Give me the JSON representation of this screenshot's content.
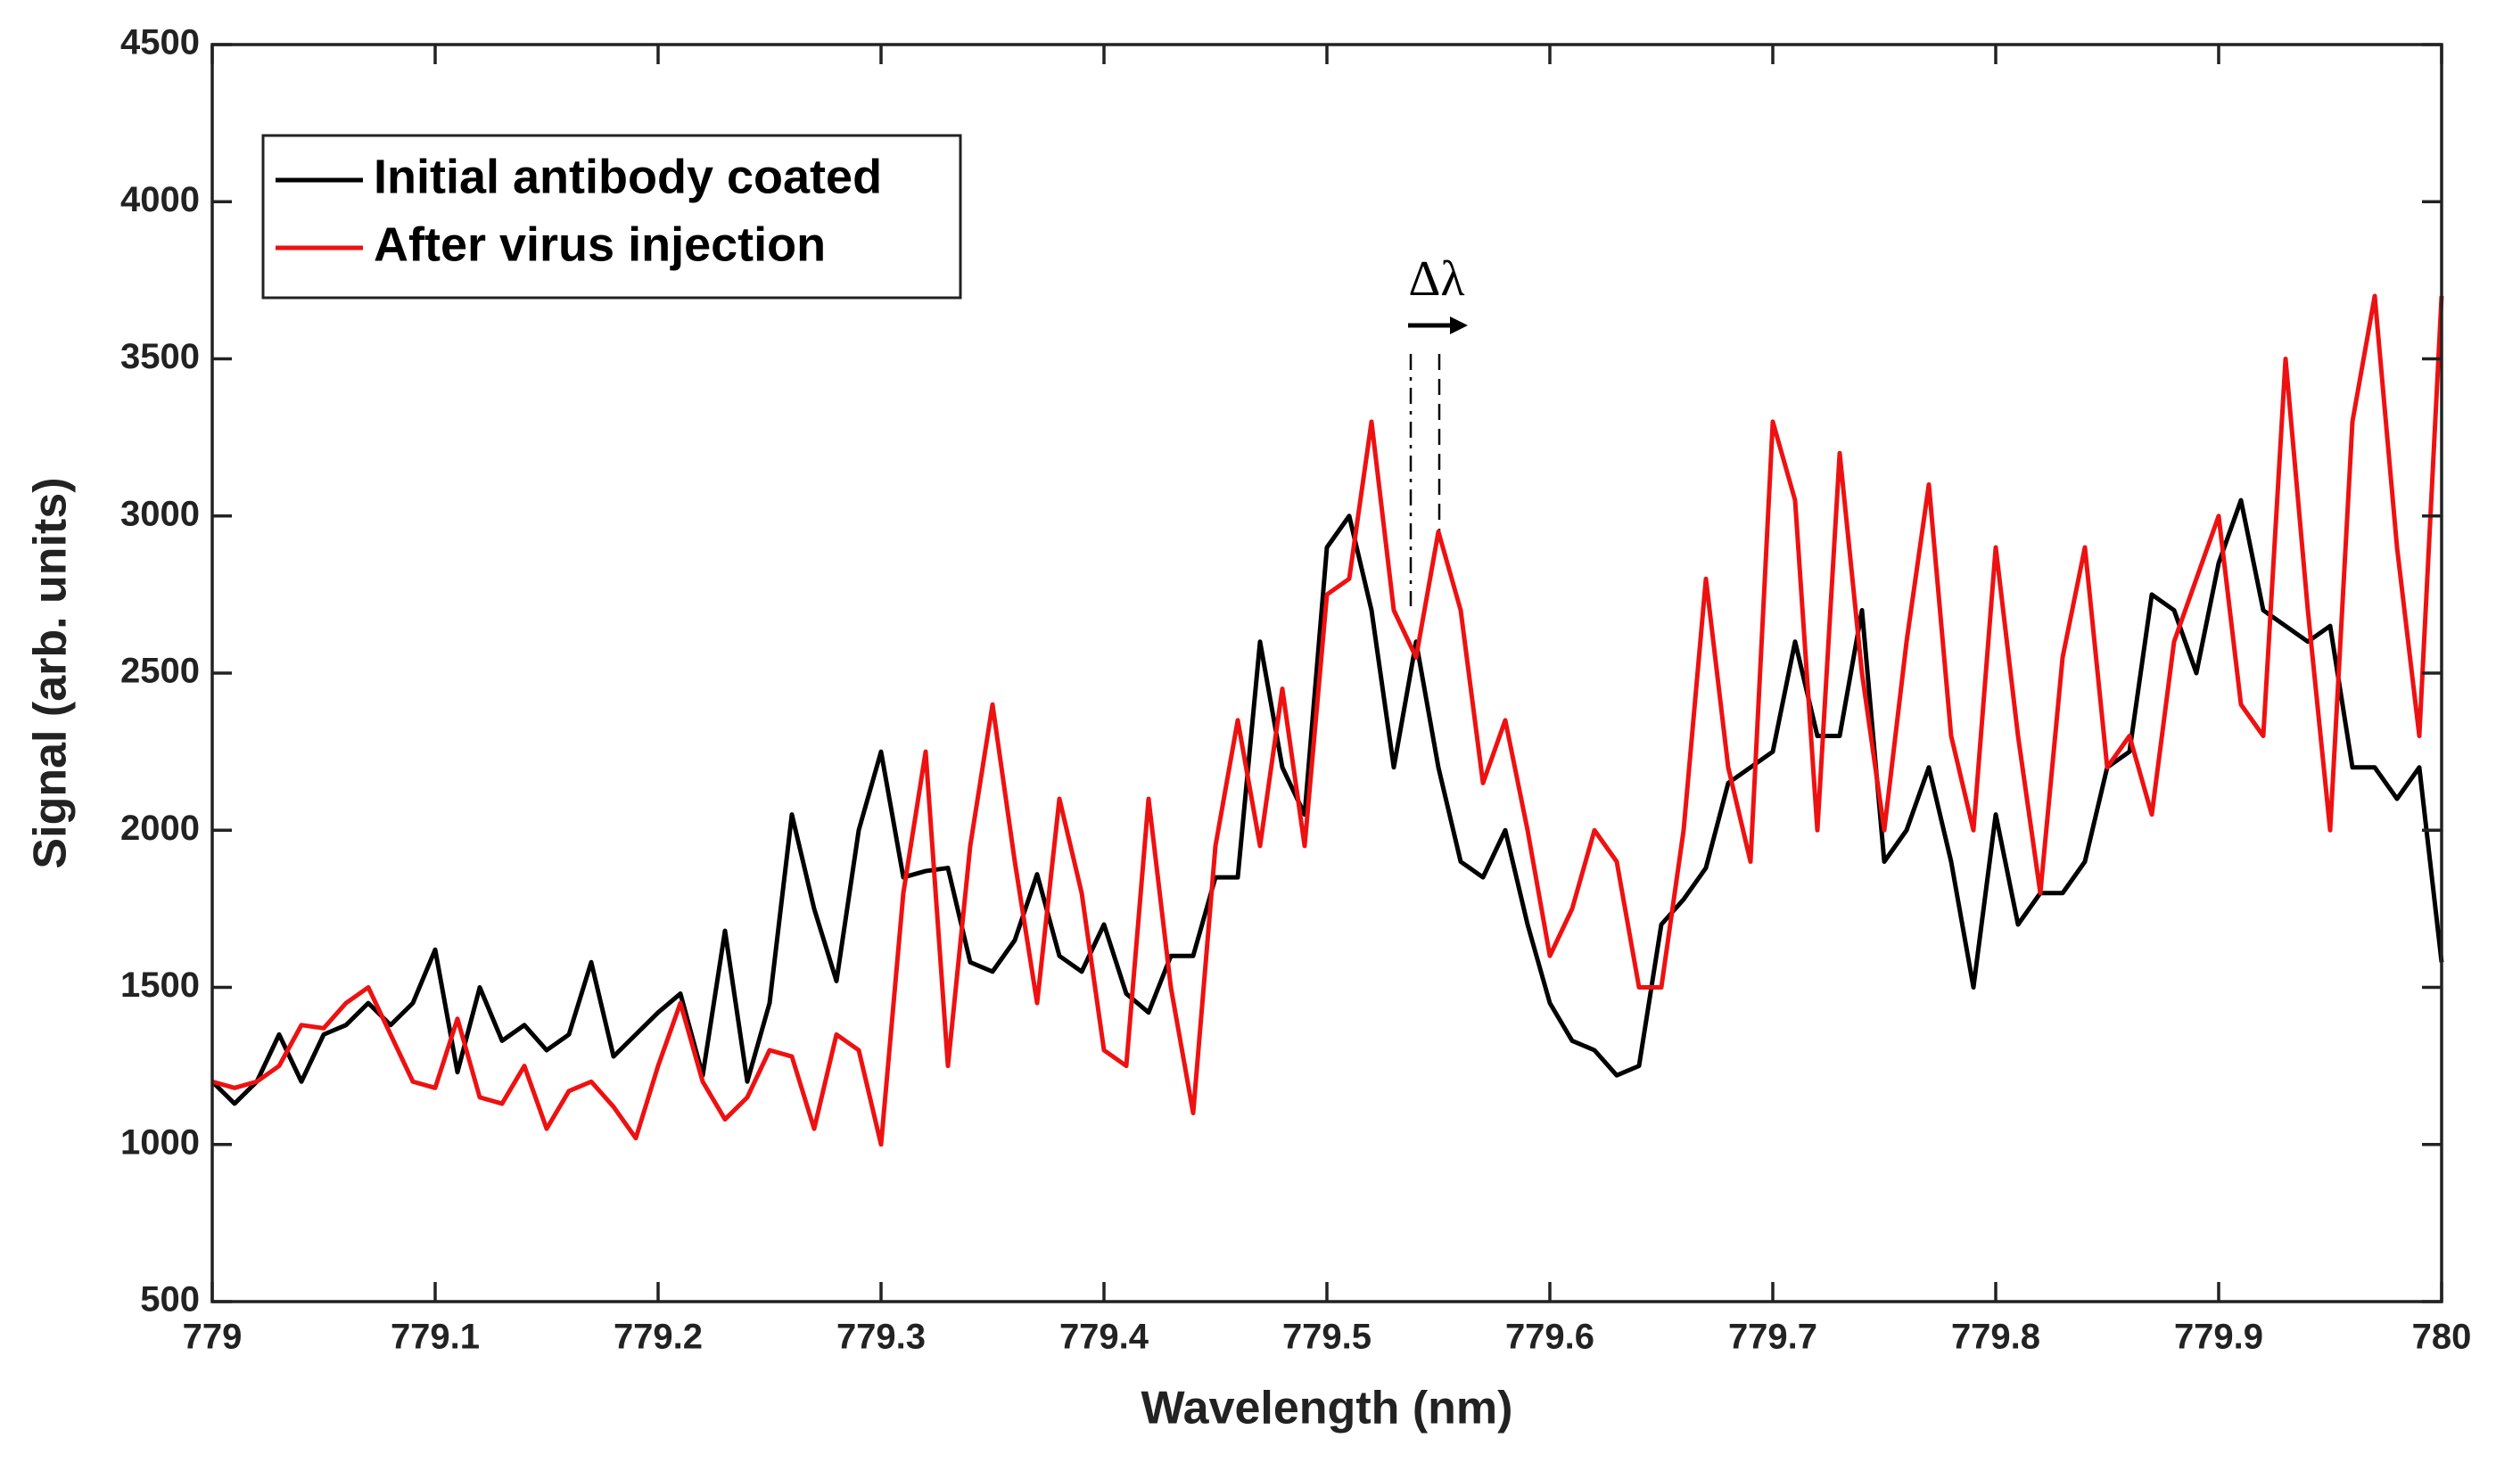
{
  "chart_data": {
    "type": "line",
    "xlabel": "Wavelength (nm)",
    "ylabel": "Signal (arb. units)",
    "annotation": "Δλ",
    "legend": "upper left",
    "x": [
      779,
      779.01,
      779.02,
      779.03,
      779.04,
      779.05,
      779.06,
      779.07,
      779.08,
      779.09,
      779.1,
      779.11,
      779.12,
      779.13,
      779.14,
      779.15,
      779.16,
      779.17,
      779.18,
      779.19,
      779.2,
      779.21,
      779.22,
      779.23,
      779.24,
      779.25,
      779.26,
      779.27,
      779.28,
      779.29,
      779.3,
      779.31,
      779.32,
      779.33,
      779.34,
      779.35,
      779.36,
      779.37,
      779.38,
      779.39,
      779.4,
      779.41,
      779.42,
      779.43,
      779.44,
      779.45,
      779.46,
      779.47,
      779.48,
      779.49,
      779.5,
      779.51,
      779.52,
      779.53,
      779.54,
      779.55,
      779.56,
      779.57,
      779.58,
      779.59,
      779.6,
      779.61,
      779.62,
      779.63,
      779.64,
      779.65,
      779.66,
      779.67,
      779.68,
      779.69,
      779.7,
      779.71,
      779.72,
      779.73,
      779.74,
      779.75,
      779.76,
      779.77,
      779.78,
      779.79,
      779.8,
      779.81,
      779.82,
      779.83,
      779.84,
      779.85,
      779.86,
      779.87,
      779.88,
      779.89,
      779.9,
      779.91,
      779.92,
      779.93,
      779.94,
      779.95,
      779.96,
      779.97,
      779.98,
      779.99,
      780
    ],
    "series": [
      {
        "name": "Initial antibody coated",
        "color": "#000000",
        "values": [
          1200,
          1130,
          1200,
          1350,
          1200,
          1350,
          1380,
          1450,
          1380,
          1450,
          1620,
          1230,
          1500,
          1330,
          1380,
          1300,
          1350,
          1580,
          1280,
          1350,
          1420,
          1480,
          1220,
          1680,
          1200,
          1450,
          2050,
          1750,
          1520,
          2000,
          2250,
          1850,
          1870,
          1880,
          1580,
          1550,
          1650,
          1860,
          1600,
          1550,
          1700,
          1480,
          1420,
          1600,
          1600,
          1850,
          1850,
          2600,
          2200,
          2050,
          2900,
          3000,
          2700,
          2200,
          2600,
          2200,
          1900,
          1850,
          2000,
          1700,
          1450,
          1330,
          1300,
          1220,
          1250,
          1700,
          1780,
          1880,
          2150,
          2200,
          2250,
          2600,
          2300,
          2300,
          2700,
          1900,
          2000,
          2200,
          1900,
          1500,
          2050,
          1700,
          1800,
          1800,
          1900,
          2200,
          2250,
          2750,
          2700,
          2500,
          2850,
          3050,
          2700,
          2650,
          2600,
          2650,
          2200,
          2200,
          2100,
          2200,
          1580
        ]
      },
      {
        "name": "After virus injection",
        "color": "#ee1111",
        "values": [
          1200,
          1180,
          1200,
          1250,
          1380,
          1370,
          1450,
          1500,
          1350,
          1200,
          1180,
          1400,
          1150,
          1130,
          1250,
          1050,
          1170,
          1200,
          1120,
          1020,
          1250,
          1450,
          1200,
          1080,
          1150,
          1300,
          1280,
          1050,
          1350,
          1300,
          1000,
          1800,
          2250,
          1250,
          1950,
          2400,
          1900,
          1450,
          2100,
          1800,
          1300,
          1250,
          2100,
          1500,
          1100,
          1950,
          2350,
          1950,
          2450,
          1950,
          2750,
          2800,
          3300,
          2700,
          2550,
          2950,
          2700,
          2150,
          2350,
          2000,
          1600,
          1750,
          2000,
          1900,
          1500,
          1500,
          2000,
          2800,
          2200,
          1900,
          3300,
          3050,
          2000,
          3200,
          2500,
          2000,
          2600,
          3100,
          2300,
          2000,
          2900,
          2300,
          1800,
          2550,
          2900,
          2200,
          2300,
          2050,
          2600,
          2800,
          3000,
          2400,
          2300,
          3500,
          2700,
          2000,
          3300,
          3700,
          2900,
          2300,
          3700
        ]
      }
    ],
    "xlim": [
      779,
      780
    ],
    "xticks": [
      779,
      779.1,
      779.2,
      779.3,
      779.4,
      779.5,
      779.6,
      779.7,
      779.8,
      779.9,
      780
    ],
    "ylim": [
      500,
      4500
    ],
    "yticks": [
      500,
      1000,
      1500,
      2000,
      2500,
      3000,
      3500,
      4000,
      4500
    ],
    "grid": false
  }
}
